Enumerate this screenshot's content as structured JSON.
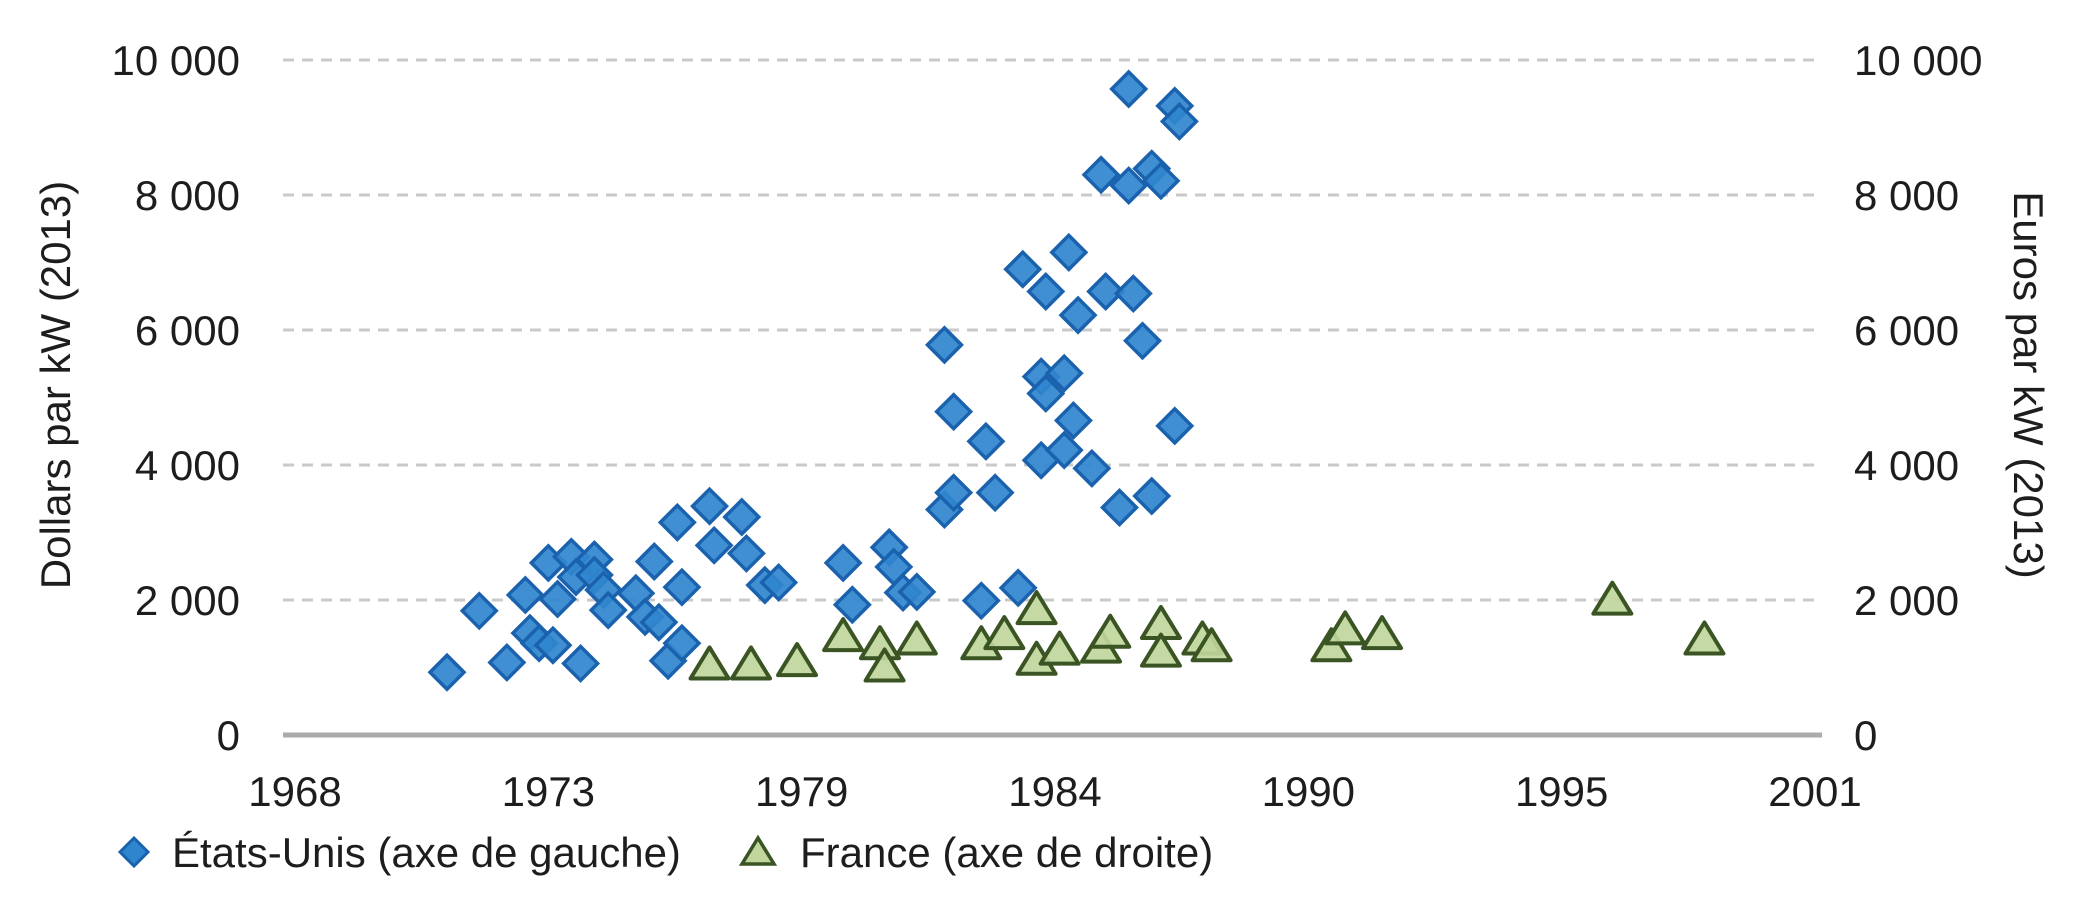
{
  "chart_data": {
    "type": "scatter",
    "title": "",
    "grid": "horizontal-dashed",
    "legend_position": "bottom-left",
    "colors": {
      "us_fill": "#2F85CE",
      "us_border": "#1B62AE",
      "fr_fill": "#C0D69C",
      "fr_border": "#3A5523",
      "gridline": "#C9C9C9",
      "axis_line": "#ABABAB",
      "text": "#1d1d1d"
    },
    "x_axis": {
      "range": [
        1968,
        2001
      ],
      "tick_labels": [
        "1968",
        "1973",
        "1979",
        "1984",
        "1990",
        "1995",
        "2001"
      ],
      "tick_years": [
        1968,
        1973.5,
        1979,
        1984.5,
        1990,
        1995.5,
        2001
      ]
    },
    "left_axis": {
      "label": "Dollars par kW (2013)",
      "range": [
        0,
        10000
      ],
      "tick_values": [
        0,
        2000,
        4000,
        6000,
        8000,
        10000
      ],
      "tick_labels": [
        "0",
        "2 000",
        "4 000",
        "6 000",
        "8 000",
        "10 000"
      ]
    },
    "right_axis": {
      "label": "Euros par kW (2013)",
      "range": [
        0,
        10000
      ],
      "tick_values": [
        0,
        2000,
        4000,
        6000,
        8000,
        10000
      ],
      "tick_labels": [
        "0",
        "2 000",
        "4 000",
        "6 000",
        "8 000",
        "10 000"
      ]
    },
    "series": [
      {
        "name": "États-Unis (axe de gauche)",
        "axis": "left",
        "marker": "diamond",
        "points": [
          [
            1971.3,
            930
          ],
          [
            1972.0,
            1840
          ],
          [
            1972.6,
            1075
          ],
          [
            1973.0,
            2075
          ],
          [
            1973.1,
            1510
          ],
          [
            1973.3,
            1360
          ],
          [
            1973.5,
            2550
          ],
          [
            1973.6,
            1330
          ],
          [
            1973.7,
            2015
          ],
          [
            1974.0,
            2640
          ],
          [
            1974.1,
            2340
          ],
          [
            1974.2,
            1060
          ],
          [
            1974.5,
            2600
          ],
          [
            1974.5,
            2370
          ],
          [
            1974.7,
            2150
          ],
          [
            1974.8,
            1850
          ],
          [
            1975.4,
            2100
          ],
          [
            1975.6,
            1750
          ],
          [
            1975.8,
            2570
          ],
          [
            1975.9,
            1670
          ],
          [
            1976.1,
            1100
          ],
          [
            1976.3,
            3150
          ],
          [
            1976.4,
            2190
          ],
          [
            1976.4,
            1360
          ],
          [
            1977.0,
            3390
          ],
          [
            1977.1,
            2810
          ],
          [
            1977.7,
            3230
          ],
          [
            1977.8,
            2690
          ],
          [
            1978.2,
            2220
          ],
          [
            1978.5,
            2260
          ],
          [
            1979.9,
            2550
          ],
          [
            1980.1,
            1930
          ],
          [
            1980.9,
            2780
          ],
          [
            1981.0,
            2490
          ],
          [
            1981.2,
            2110
          ],
          [
            1981.5,
            2120
          ],
          [
            1982.1,
            5780
          ],
          [
            1982.1,
            3340
          ],
          [
            1982.3,
            4790
          ],
          [
            1982.3,
            3590
          ],
          [
            1982.9,
            1990
          ],
          [
            1983.0,
            4350
          ],
          [
            1983.2,
            3590
          ],
          [
            1983.7,
            2180
          ],
          [
            1983.8,
            6900
          ],
          [
            1984.2,
            4070
          ],
          [
            1984.2,
            5310
          ],
          [
            1984.3,
            5060
          ],
          [
            1984.3,
            6570
          ],
          [
            1984.7,
            5360
          ],
          [
            1984.7,
            4220
          ],
          [
            1984.8,
            7150
          ],
          [
            1984.9,
            4660
          ],
          [
            1985.0,
            6220
          ],
          [
            1985.3,
            3950
          ],
          [
            1985.5,
            8300
          ],
          [
            1985.6,
            6570
          ],
          [
            1985.9,
            3370
          ],
          [
            1986.1,
            9570
          ],
          [
            1986.1,
            8140
          ],
          [
            1986.2,
            6540
          ],
          [
            1986.4,
            5840
          ],
          [
            1986.6,
            8390
          ],
          [
            1986.6,
            3540
          ],
          [
            1986.8,
            8210
          ],
          [
            1987.1,
            9320
          ],
          [
            1987.1,
            4580
          ],
          [
            1987.2,
            9090
          ]
        ]
      },
      {
        "name": "France (axe de droite)",
        "axis": "right",
        "marker": "triangle",
        "points": [
          [
            1977.0,
            1030
          ],
          [
            1977.9,
            1030
          ],
          [
            1978.9,
            1080
          ],
          [
            1979.9,
            1450
          ],
          [
            1980.7,
            1330
          ],
          [
            1980.8,
            1000
          ],
          [
            1981.5,
            1400
          ],
          [
            1982.9,
            1330
          ],
          [
            1983.4,
            1480
          ],
          [
            1984.1,
            1850
          ],
          [
            1984.1,
            1100
          ],
          [
            1984.6,
            1250
          ],
          [
            1985.5,
            1280
          ],
          [
            1985.7,
            1500
          ],
          [
            1986.8,
            1630
          ],
          [
            1986.8,
            1220
          ],
          [
            1987.7,
            1400
          ],
          [
            1987.9,
            1300
          ],
          [
            1990.5,
            1300
          ],
          [
            1990.8,
            1550
          ],
          [
            1991.6,
            1480
          ],
          [
            1996.6,
            1990
          ],
          [
            1998.6,
            1400
          ]
        ]
      }
    ]
  },
  "axes": {
    "left_title": "Dollars par kW (2013)",
    "right_title": "Euros par kW (2013)"
  },
  "legend": {
    "us_label": "États-Unis (axe de gauche)",
    "fr_label": "France (axe de droite)"
  }
}
